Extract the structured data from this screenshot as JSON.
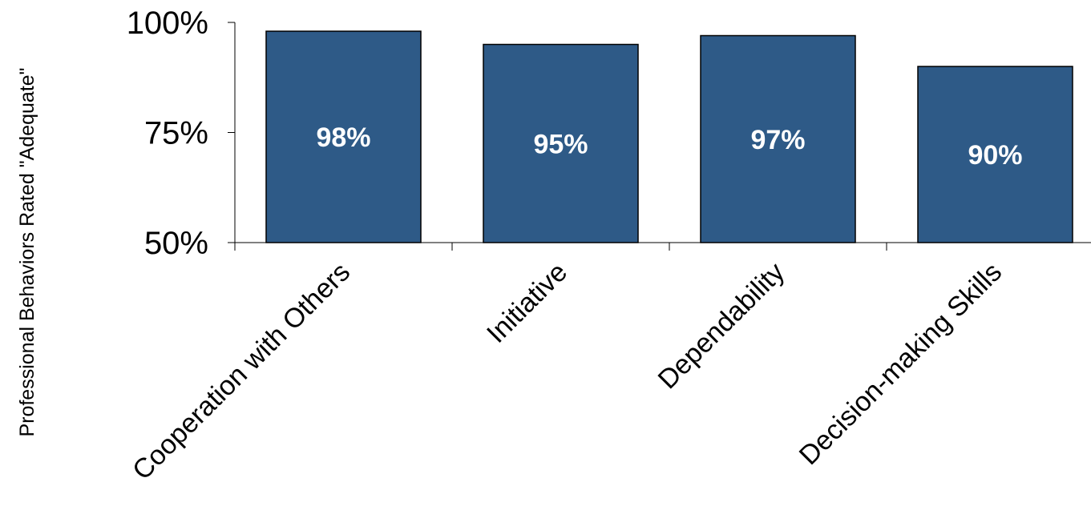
{
  "chart_data": {
    "type": "bar",
    "title": "",
    "xlabel": "",
    "ylabel": "Professional Behaviors Rated \"Adequate\"",
    "categories": [
      "Cooperation with Others",
      "Initiative",
      "Dependability",
      "Decision-making Skills"
    ],
    "values": [
      98,
      95,
      97,
      90
    ],
    "data_labels": [
      "98%",
      "95%",
      "97%",
      "90%"
    ],
    "ylim": [
      50,
      100
    ],
    "yticks": [
      50,
      75,
      100
    ],
    "ytick_labels": [
      "50%",
      "75%",
      "100%"
    ],
    "grid": false,
    "legend": "none",
    "bar_color": "#2E5A87",
    "bar_edge_color": "#000000",
    "data_label_color": "#FFFFFF"
  }
}
